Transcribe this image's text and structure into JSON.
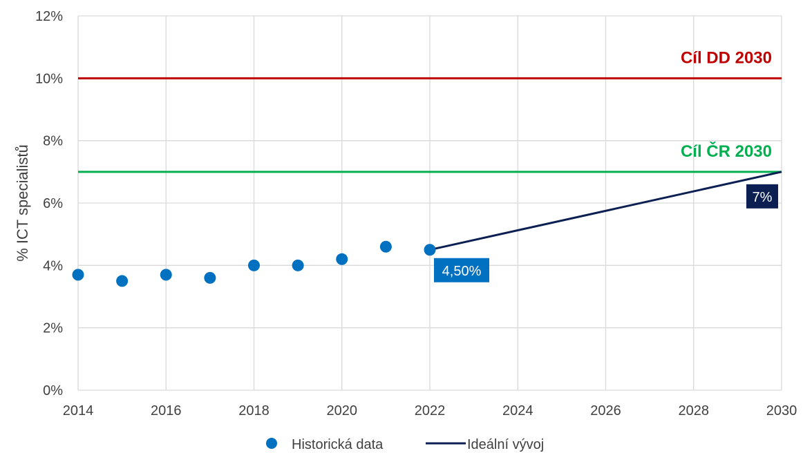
{
  "chart_data": {
    "type": "scatter",
    "ylabel": "% ICT specialistů",
    "xlim": [
      2014,
      2030
    ],
    "ylim": [
      0,
      12
    ],
    "x_ticks": [
      2014,
      2016,
      2018,
      2020,
      2022,
      2024,
      2026,
      2028,
      2030
    ],
    "x_tick_labels": [
      "2014",
      "2016",
      "2018",
      "2020",
      "2022",
      "2024",
      "2026",
      "2028",
      "2030"
    ],
    "y_ticks": [
      0,
      2,
      4,
      6,
      8,
      10,
      12
    ],
    "y_tick_labels": [
      "0%",
      "2%",
      "4%",
      "6%",
      "8%",
      "10%",
      "12%"
    ],
    "grid": true,
    "legend_position": "bottom-center",
    "series": [
      {
        "name": "Historická data",
        "type": "scatter",
        "color": "#0070c0",
        "x": [
          2014,
          2015,
          2016,
          2017,
          2018,
          2019,
          2020,
          2021,
          2022
        ],
        "values": [
          3.7,
          3.5,
          3.7,
          3.6,
          4.0,
          4.0,
          4.2,
          4.6,
          4.5
        ]
      },
      {
        "name": "Ideální vývoj",
        "type": "line",
        "color": "#0b1f52",
        "x": [
          2022,
          2030
        ],
        "values": [
          4.5,
          7.0
        ]
      }
    ],
    "reference_lines": [
      {
        "label": "Cíl DD 2030",
        "value": 10,
        "color": "#c00000"
      },
      {
        "label": "Cíl ČR 2030",
        "value": 7,
        "color": "#00b050"
      }
    ],
    "data_labels": [
      {
        "text": "4,50%",
        "x": 2022,
        "y": 4.5,
        "color": "#0070c0"
      },
      {
        "text": "7%",
        "x": 2030,
        "y": 7.0,
        "color": "#0b1f52"
      }
    ]
  }
}
